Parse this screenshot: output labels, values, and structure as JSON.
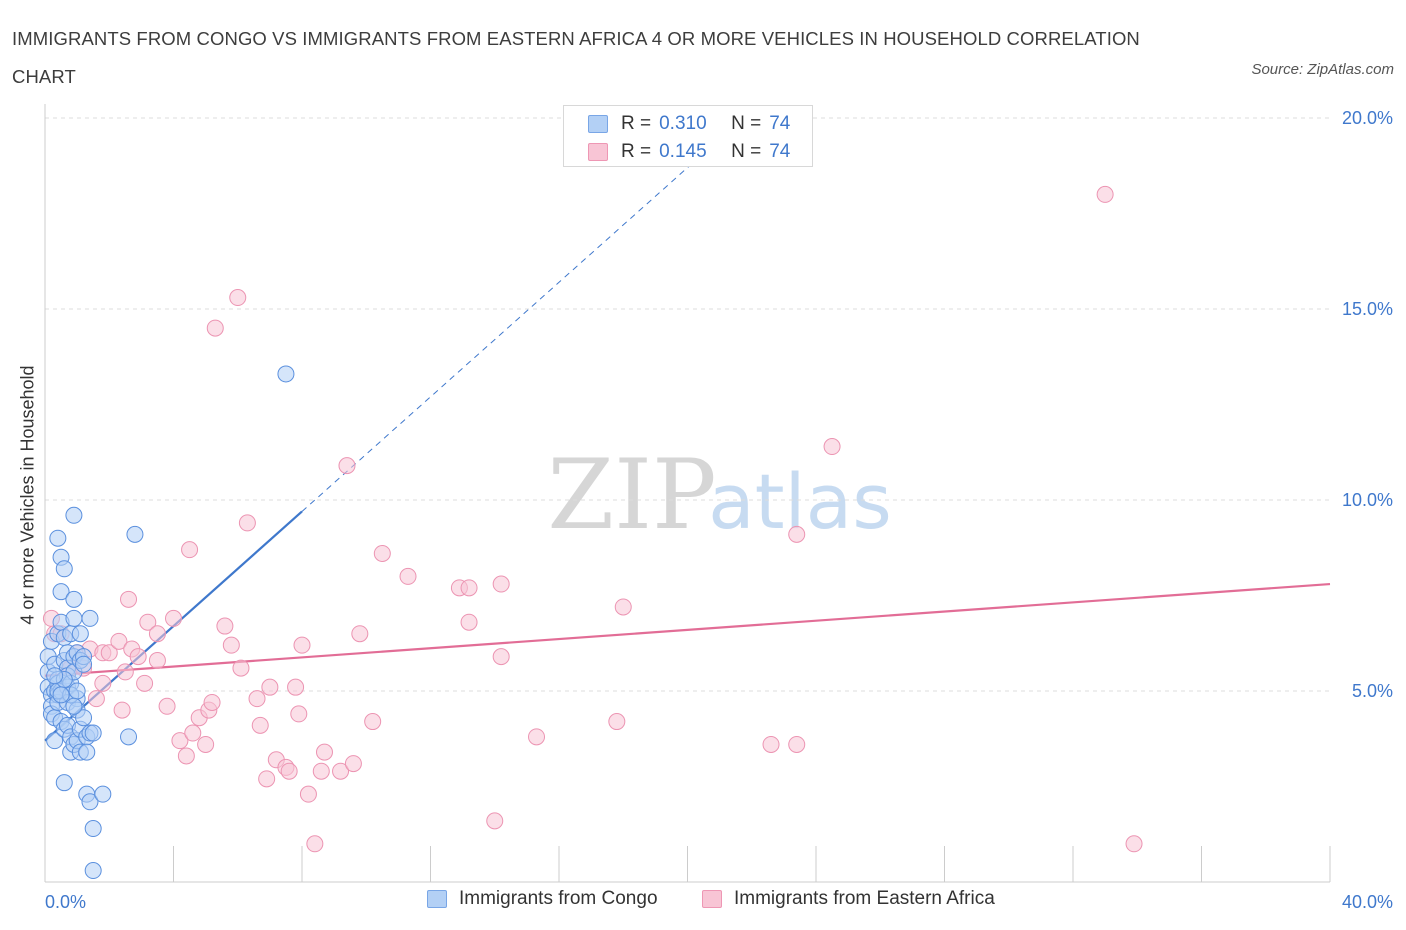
{
  "title": "IMMIGRANTS FROM CONGO VS IMMIGRANTS FROM EASTERN AFRICA 4 OR MORE VEHICLES IN HOUSEHOLD CORRELATION CHART",
  "source": "Source: ZipAtlas.com",
  "watermark": {
    "zip": "ZIP",
    "atlas": "atlas"
  },
  "colors": {
    "blue": "#3f78cc",
    "blue_fill": "#b3d0f5",
    "pink": "#e26d96",
    "pink_fill": "#f8c5d5",
    "grid": "#dcdcdc",
    "tick_text": "#3f78cc"
  },
  "legend": {
    "r_label": "R =",
    "n_label": "N =",
    "series": [
      {
        "r": "0.310",
        "n": "74"
      },
      {
        "r": "0.145",
        "n": "74"
      }
    ]
  },
  "chart_data": {
    "type": "scatter",
    "xlabel": "",
    "ylabel": "4 or more Vehicles in Household",
    "xlim": [
      0,
      40
    ],
    "ylim": [
      0,
      20
    ],
    "x_ticks": [
      "0.0%",
      "40.0%"
    ],
    "y_ticks": [
      {
        "value": 5,
        "label": "5.0%"
      },
      {
        "value": 10,
        "label": "10.0%"
      },
      {
        "value": 15,
        "label": "15.0%"
      },
      {
        "value": 20,
        "label": "20.0%"
      }
    ],
    "series": [
      {
        "name": "Immigrants from Congo",
        "color": "#3f78cc",
        "trend": {
          "x0": 0,
          "y0": 3.7,
          "x1": 8,
          "y1": 9.7,
          "solid_to_x": 8,
          "dashed_to_x": 40
        },
        "points": [
          [
            0.1,
            5.5
          ],
          [
            0.1,
            5.9
          ],
          [
            0.1,
            5.1
          ],
          [
            0.2,
            4.9
          ],
          [
            0.2,
            4.6
          ],
          [
            0.2,
            4.4
          ],
          [
            0.2,
            6.3
          ],
          [
            0.3,
            5.7
          ],
          [
            0.3,
            5.0
          ],
          [
            0.3,
            4.3
          ],
          [
            0.3,
            3.7
          ],
          [
            0.4,
            5.3
          ],
          [
            0.4,
            5.2
          ],
          [
            0.4,
            4.9
          ],
          [
            0.4,
            4.7
          ],
          [
            0.4,
            6.5
          ],
          [
            0.4,
            9.0
          ],
          [
            0.5,
            8.5
          ],
          [
            0.5,
            7.6
          ],
          [
            0.5,
            5.0
          ],
          [
            0.5,
            4.2
          ],
          [
            0.5,
            6.8
          ],
          [
            0.6,
            8.2
          ],
          [
            0.6,
            4.0
          ],
          [
            0.6,
            6.4
          ],
          [
            0.6,
            5.8
          ],
          [
            0.6,
            2.6
          ],
          [
            0.7,
            6.0
          ],
          [
            0.7,
            5.6
          ],
          [
            0.7,
            5.4
          ],
          [
            0.7,
            5.1
          ],
          [
            0.7,
            4.7
          ],
          [
            0.7,
            4.1
          ],
          [
            0.8,
            6.5
          ],
          [
            0.8,
            5.2
          ],
          [
            0.8,
            3.8
          ],
          [
            0.8,
            3.4
          ],
          [
            0.9,
            6.9
          ],
          [
            0.9,
            5.9
          ],
          [
            0.9,
            5.5
          ],
          [
            0.9,
            3.6
          ],
          [
            0.9,
            7.4
          ],
          [
            0.9,
            9.6
          ],
          [
            1.0,
            4.8
          ],
          [
            1.0,
            4.5
          ],
          [
            1.0,
            3.7
          ],
          [
            1.0,
            6.0
          ],
          [
            1.1,
            6.5
          ],
          [
            1.1,
            4.0
          ],
          [
            1.1,
            3.4
          ],
          [
            1.1,
            5.8
          ],
          [
            1.2,
            5.9
          ],
          [
            1.2,
            4.3
          ],
          [
            1.2,
            5.7
          ],
          [
            1.3,
            3.8
          ],
          [
            1.3,
            3.4
          ],
          [
            1.3,
            2.3
          ],
          [
            1.4,
            3.9
          ],
          [
            1.4,
            6.9
          ],
          [
            1.4,
            2.1
          ],
          [
            1.5,
            3.9
          ],
          [
            1.5,
            1.4
          ],
          [
            1.5,
            0.3
          ],
          [
            1.8,
            2.3
          ],
          [
            2.6,
            3.8
          ],
          [
            2.8,
            9.1
          ],
          [
            7.5,
            13.3
          ],
          [
            0.4,
            5.0
          ],
          [
            0.6,
            5.3
          ],
          [
            0.8,
            4.9
          ],
          [
            1.0,
            5.0
          ],
          [
            0.3,
            5.4
          ],
          [
            0.5,
            4.9
          ],
          [
            0.9,
            4.6
          ]
        ]
      },
      {
        "name": "Immigrants from Eastern Africa",
        "color": "#e26d96",
        "trend": {
          "x0": 0,
          "y0": 5.4,
          "x1": 40,
          "y1": 7.8
        },
        "points": [
          [
            0.2,
            6.9
          ],
          [
            0.3,
            6.5
          ],
          [
            0.5,
            6.5
          ],
          [
            0.7,
            5.6
          ],
          [
            0.8,
            5.6
          ],
          [
            1.0,
            6.0
          ],
          [
            1.2,
            5.6
          ],
          [
            1.4,
            6.1
          ],
          [
            1.6,
            4.8
          ],
          [
            1.8,
            6.0
          ],
          [
            2.0,
            6.0
          ],
          [
            2.3,
            6.3
          ],
          [
            2.4,
            4.5
          ],
          [
            2.6,
            7.4
          ],
          [
            2.7,
            6.1
          ],
          [
            2.9,
            5.9
          ],
          [
            3.1,
            5.2
          ],
          [
            3.2,
            6.8
          ],
          [
            3.5,
            6.5
          ],
          [
            3.8,
            4.6
          ],
          [
            4.0,
            6.9
          ],
          [
            4.2,
            3.7
          ],
          [
            4.4,
            3.3
          ],
          [
            4.5,
            8.7
          ],
          [
            4.8,
            4.3
          ],
          [
            5.0,
            3.6
          ],
          [
            5.1,
            4.5
          ],
          [
            5.3,
            14.5
          ],
          [
            5.2,
            4.7
          ],
          [
            5.6,
            6.7
          ],
          [
            5.8,
            6.2
          ],
          [
            6.0,
            15.3
          ],
          [
            6.1,
            5.6
          ],
          [
            6.3,
            9.4
          ],
          [
            6.6,
            4.8
          ],
          [
            6.7,
            4.1
          ],
          [
            6.9,
            2.7
          ],
          [
            7.0,
            5.1
          ],
          [
            7.2,
            3.2
          ],
          [
            7.5,
            3.0
          ],
          [
            7.6,
            2.9
          ],
          [
            7.8,
            5.1
          ],
          [
            7.9,
            4.4
          ],
          [
            8.0,
            6.2
          ],
          [
            8.2,
            2.3
          ],
          [
            8.4,
            1.0
          ],
          [
            8.6,
            2.9
          ],
          [
            8.7,
            3.4
          ],
          [
            9.2,
            2.9
          ],
          [
            9.4,
            10.9
          ],
          [
            9.6,
            3.1
          ],
          [
            9.8,
            6.5
          ],
          [
            10.2,
            4.2
          ],
          [
            10.5,
            8.6
          ],
          [
            11.3,
            8.0
          ],
          [
            12.9,
            7.7
          ],
          [
            13.2,
            7.7
          ],
          [
            13.2,
            6.8
          ],
          [
            14.0,
            1.6
          ],
          [
            14.2,
            7.8
          ],
          [
            14.2,
            5.9
          ],
          [
            15.3,
            3.8
          ],
          [
            17.8,
            4.2
          ],
          [
            18.0,
            7.2
          ],
          [
            22.6,
            3.6
          ],
          [
            23.4,
            9.1
          ],
          [
            23.4,
            3.6
          ],
          [
            24.5,
            11.4
          ],
          [
            33.0,
            18.0
          ],
          [
            33.9,
            1.0
          ],
          [
            3.5,
            5.8
          ],
          [
            2.5,
            5.5
          ],
          [
            4.6,
            3.9
          ],
          [
            1.8,
            5.2
          ]
        ]
      }
    ],
    "legend_labels": [
      "Immigrants from Congo",
      "Immigrants from Eastern Africa"
    ]
  }
}
